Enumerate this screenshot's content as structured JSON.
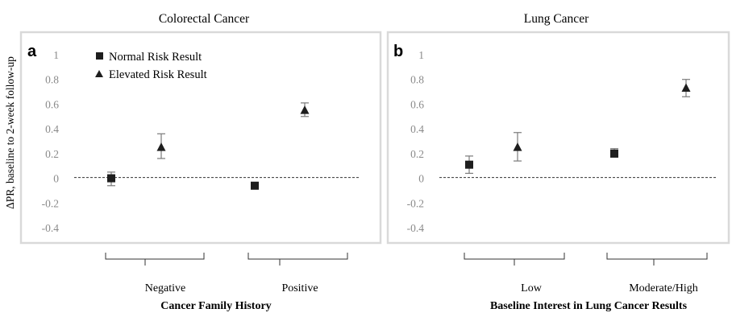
{
  "ylabel": "ΔPR, baseline to 2-week follow-up",
  "y_ticks": [
    "1",
    "0.8",
    "0.6",
    "0.4",
    "0.2",
    "0",
    "-0.2",
    "-0.4"
  ],
  "legend": {
    "normal": "Normal Risk Result",
    "elevated": "Elevated Risk Result"
  },
  "colors": {
    "marker": "#1e1e1e",
    "errorbar": "#7a7a7a",
    "frame": "#d9d9d9",
    "bracket": "#333333"
  },
  "chart_data": [
    {
      "type": "scatter",
      "panel": "a",
      "title": "Colorectal Cancer",
      "xlabel": "Cancer Family History",
      "ylabel": "ΔPR, baseline to 2-week follow-up",
      "ylim": [
        -0.4,
        1
      ],
      "reference_line": 0,
      "categories": [
        "Negative",
        "Positive"
      ],
      "series": [
        {
          "name": "Normal Risk Result",
          "marker": "square",
          "values": [
            0.0,
            -0.06
          ],
          "err_low": [
            -0.06,
            -0.06
          ],
          "err_high": [
            0.05,
            -0.06
          ]
        },
        {
          "name": "Elevated Risk Result",
          "marker": "triangle",
          "values": [
            0.25,
            0.55
          ],
          "err_low": [
            0.16,
            0.5
          ],
          "err_high": [
            0.36,
            0.61
          ]
        }
      ]
    },
    {
      "type": "scatter",
      "panel": "b",
      "title": "Lung Cancer",
      "xlabel": "Baseline Interest in Lung Cancer Results",
      "ylim": [
        -0.4,
        1
      ],
      "reference_line": 0,
      "categories": [
        "Low",
        "Moderate/High"
      ],
      "series": [
        {
          "name": "Normal Risk Result",
          "marker": "square",
          "values": [
            0.11,
            0.2
          ],
          "err_low": [
            0.04,
            0.17
          ],
          "err_high": [
            0.18,
            0.24
          ]
        },
        {
          "name": "Elevated Risk Result",
          "marker": "triangle",
          "values": [
            0.25,
            0.73
          ],
          "err_low": [
            0.14,
            0.66
          ],
          "err_high": [
            0.37,
            0.8
          ]
        }
      ]
    }
  ]
}
